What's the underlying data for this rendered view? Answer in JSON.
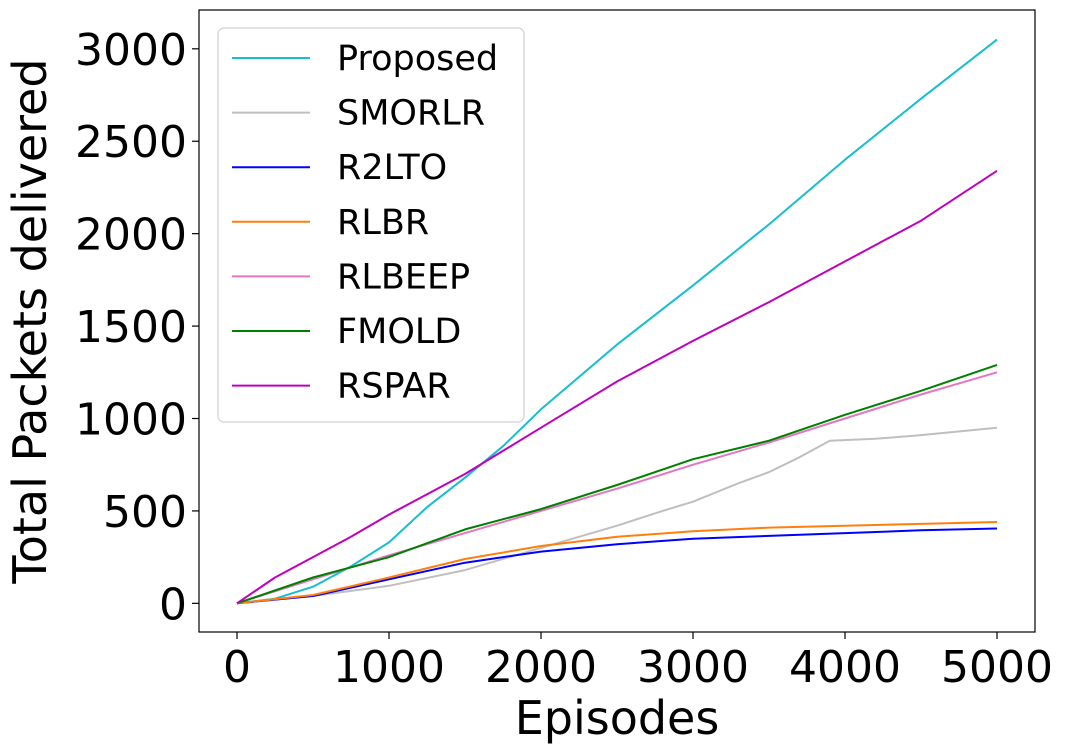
{
  "chart_data": {
    "type": "line",
    "xlabel": "Episodes",
    "ylabel": "Total Packets delivered",
    "xlim": [
      -250,
      5250
    ],
    "ylim": [
      -155,
      3210
    ],
    "xticks": [
      0,
      1000,
      2000,
      3000,
      4000,
      5000
    ],
    "yticks": [
      0,
      500,
      1000,
      1500,
      2000,
      2500,
      3000
    ],
    "grid": false,
    "legend_position": "upper-left",
    "series": [
      {
        "name": "Proposed",
        "color": "#17becf",
        "x": [
          0,
          250,
          500,
          750,
          1000,
          1250,
          1500,
          1750,
          2000,
          2500,
          3000,
          3500,
          4000,
          4500,
          5000
        ],
        "y": [
          0,
          25,
          90,
          200,
          330,
          520,
          680,
          850,
          1050,
          1400,
          1720,
          2050,
          2400,
          2730,
          3050
        ]
      },
      {
        "name": "SMORLR",
        "color": "#bfbfbf",
        "x": [
          0,
          500,
          1000,
          1500,
          2000,
          2500,
          2800,
          3000,
          3300,
          3500,
          3700,
          3900,
          4200,
          4500,
          5000
        ],
        "y": [
          0,
          40,
          95,
          180,
          300,
          420,
          500,
          550,
          650,
          710,
          790,
          880,
          890,
          910,
          950
        ]
      },
      {
        "name": "R2LTO",
        "color": "#0000ff",
        "x": [
          0,
          500,
          1000,
          1500,
          2000,
          2500,
          3000,
          3500,
          4000,
          4500,
          5000
        ],
        "y": [
          0,
          40,
          130,
          220,
          280,
          320,
          350,
          365,
          380,
          395,
          405
        ]
      },
      {
        "name": "RLBR",
        "color": "#ff7f0e",
        "x": [
          0,
          500,
          1000,
          1500,
          2000,
          2500,
          3000,
          3500,
          4000,
          4500,
          5000
        ],
        "y": [
          0,
          45,
          140,
          240,
          310,
          360,
          390,
          410,
          420,
          430,
          440
        ]
      },
      {
        "name": "RLBEEP",
        "color": "#e377c2",
        "x": [
          0,
          500,
          1000,
          1500,
          2000,
          2500,
          3000,
          3500,
          4000,
          4500,
          5000
        ],
        "y": [
          0,
          130,
          260,
          380,
          500,
          620,
          750,
          870,
          1000,
          1130,
          1250
        ]
      },
      {
        "name": "FMOLD",
        "color": "#008000",
        "x": [
          0,
          500,
          1000,
          1500,
          2000,
          2500,
          3000,
          3500,
          4000,
          4500,
          5000
        ],
        "y": [
          0,
          140,
          250,
          400,
          510,
          640,
          780,
          880,
          1020,
          1150,
          1290
        ]
      },
      {
        "name": "RSPAR",
        "color": "#bf00bf",
        "x": [
          0,
          250,
          500,
          750,
          1000,
          1500,
          2000,
          2500,
          3000,
          3500,
          4000,
          4500,
          5000
        ],
        "y": [
          0,
          140,
          250,
          360,
          480,
          700,
          950,
          1200,
          1420,
          1630,
          1850,
          2070,
          2340
        ]
      }
    ]
  }
}
